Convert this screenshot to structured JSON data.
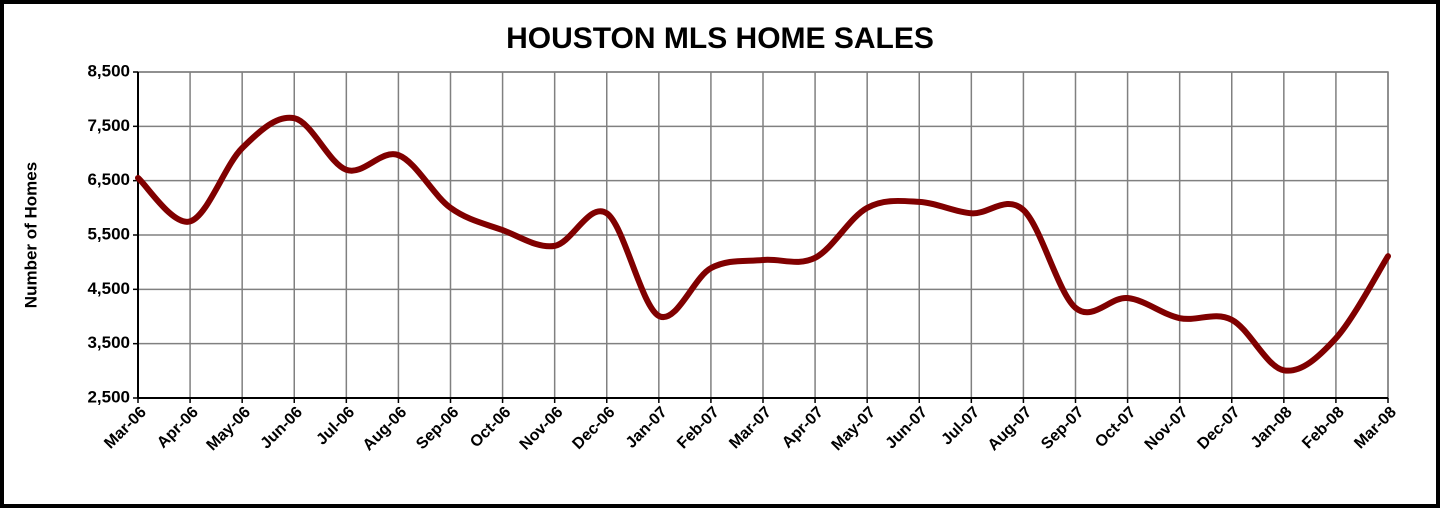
{
  "chart_data": {
    "type": "line",
    "title": "HOUSTON MLS HOME SALES",
    "y_label": "Number of Homes",
    "categories": [
      "Mar-06",
      "Apr-06",
      "May-06",
      "Jun-06",
      "Jul-06",
      "Aug-06",
      "Sep-06",
      "Oct-06",
      "Nov-06",
      "Dec-06",
      "Jan-07",
      "Feb-07",
      "Mar-07",
      "Apr-07",
      "May-07",
      "Jun-07",
      "Jul-07",
      "Aug-07",
      "Sep-07",
      "Oct-07",
      "Nov-07",
      "Dec-07",
      "Jan-08",
      "Feb-08",
      "Mar-08"
    ],
    "series": [
      {
        "name": "Home Sales",
        "color": "#800000",
        "values": [
          6550,
          5750,
          7100,
          7650,
          6700,
          6970,
          6000,
          5590,
          5300,
          5900,
          4010,
          4890,
          5040,
          5080,
          6000,
          6110,
          5900,
          5960,
          4160,
          4340,
          3970,
          3940,
          3010,
          3600,
          5110
        ]
      }
    ],
    "ylim": [
      2500,
      8500
    ],
    "yticks": [
      {
        "value": 2500,
        "label": "2,500"
      },
      {
        "value": 3500,
        "label": "3,500"
      },
      {
        "value": 4500,
        "label": "4,500"
      },
      {
        "value": 5500,
        "label": "5,500"
      },
      {
        "value": 6500,
        "label": "6,500"
      },
      {
        "value": 7500,
        "label": "7,500"
      },
      {
        "value": 8500,
        "label": "8,500"
      }
    ],
    "grid": true,
    "smooth": true
  }
}
